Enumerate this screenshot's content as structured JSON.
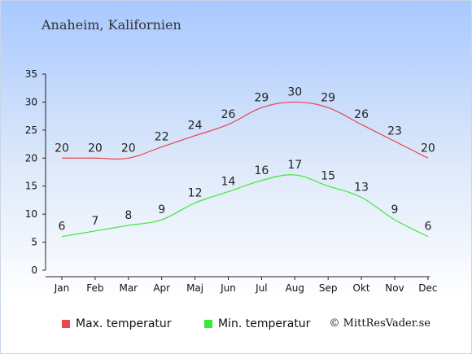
{
  "chart_data": {
    "type": "line",
    "title": "Anaheim, Kalifornien",
    "categories": [
      "Jan",
      "Feb",
      "Mar",
      "Apr",
      "Maj",
      "Jun",
      "Jul",
      "Aug",
      "Sep",
      "Okt",
      "Nov",
      "Dec"
    ],
    "ylim": [
      0,
      35
    ],
    "yticks": [
      0,
      5,
      10,
      15,
      20,
      25,
      30,
      35
    ],
    "series": [
      {
        "name": "Max. temperatur",
        "color": "#e8474c",
        "values": [
          20,
          20,
          20,
          22,
          24,
          26,
          29,
          30,
          29,
          26,
          23,
          20
        ]
      },
      {
        "name": "Min. temperatur",
        "color": "#3ee83a",
        "values": [
          6,
          7,
          8,
          9,
          12,
          14,
          16,
          17,
          15,
          13,
          9,
          6
        ]
      }
    ],
    "legend_position": "bottom-left",
    "grid": false
  },
  "legend": {
    "max_label": "Max. temperatur",
    "min_label": "Min. temperatur"
  },
  "credit": "© MittResVader.se"
}
